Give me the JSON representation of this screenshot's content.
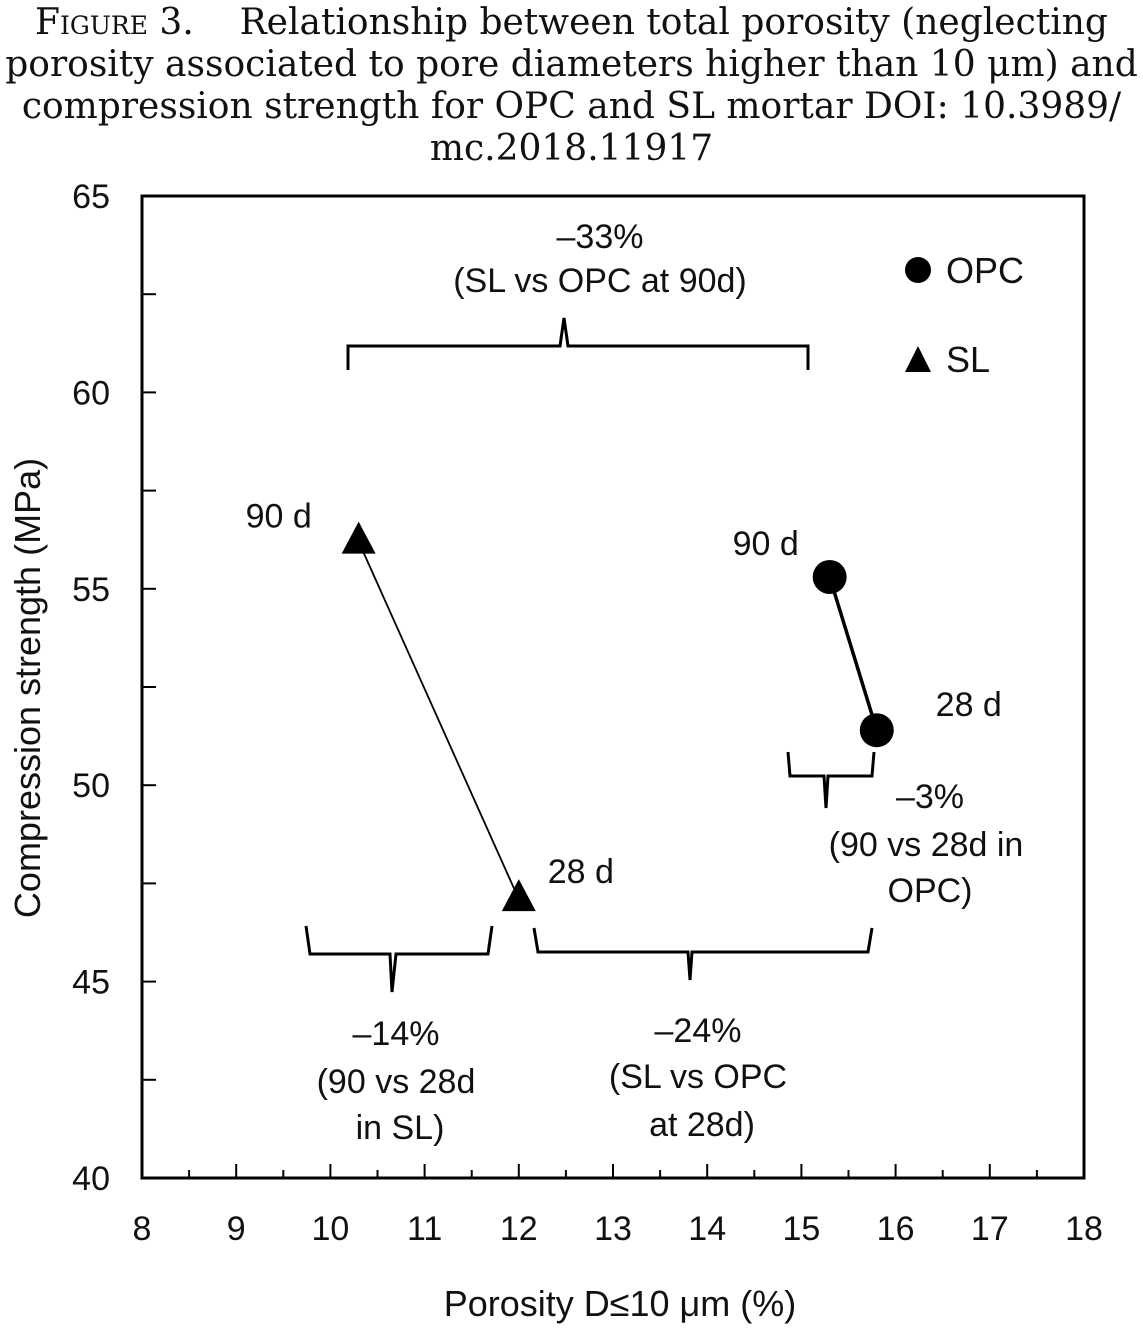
{
  "figure": {
    "label": "Figure 3.",
    "caption_line1": "Relationship between total porosity (neglecting",
    "caption_line2": "porosity associated to pore diameters higher than 10 μm) and",
    "caption_line3": "compression strength for OPC and SL mortar DOI: 10.3989/",
    "caption_line4": "mc.2018.11917"
  },
  "chart_data": {
    "type": "scatter",
    "title": "",
    "xlabel": "Porosity D≤10 μm (%)",
    "ylabel": "Compression strength (MPa)",
    "xlim": [
      8,
      18
    ],
    "ylim": [
      40,
      65
    ],
    "x_ticks": [
      8,
      9,
      10,
      11,
      12,
      13,
      14,
      15,
      16,
      17,
      18
    ],
    "y_ticks": [
      40,
      45,
      50,
      55,
      60,
      65
    ],
    "grid": false,
    "legend_position": "top-right",
    "series": [
      {
        "name": "OPC",
        "marker": "circle",
        "points": [
          {
            "x": 15.3,
            "y": 55.3,
            "label": "90 d"
          },
          {
            "x": 15.8,
            "y": 51.4,
            "label": "28 d"
          }
        ]
      },
      {
        "name": "SL",
        "marker": "triangle",
        "points": [
          {
            "x": 10.3,
            "y": 56.2,
            "label": "90 d"
          },
          {
            "x": 12.0,
            "y": 47.1,
            "label": "28 d"
          }
        ]
      }
    ],
    "annotations": [
      {
        "id": "sl-vs-opc-90",
        "lines": [
          "–33%",
          "(SL vs OPC at 90d)"
        ]
      },
      {
        "id": "opc-90-vs-28",
        "lines": [
          "–3%",
          "(90 vs 28d in",
          "OPC)"
        ]
      },
      {
        "id": "sl-90-vs-28",
        "lines": [
          "–14%",
          "(90 vs 28d",
          "in SL)"
        ]
      },
      {
        "id": "sl-vs-opc-28",
        "lines": [
          "–24%",
          "(SL vs OPC",
          "at 28d)"
        ]
      }
    ]
  }
}
